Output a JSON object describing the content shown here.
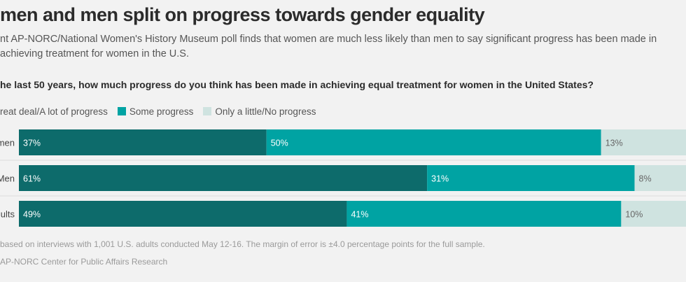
{
  "title": "men and men split on progress towards gender equality",
  "subtitle": "nt AP-NORC/National Women's History Museum poll finds that women are much less likely than men to say significant progress has been made in achieving treatment for women in the U.S.",
  "question": "he last 50 years, how much progress do you think has been made in achieving equal treatment for women in the United States?",
  "legend": [
    {
      "label": "reat deal/A lot of progress",
      "color": "#0d6b6b"
    },
    {
      "label": "Some progress",
      "color": "#00a3a3"
    },
    {
      "label": "Only a little/No progress",
      "color": "#cfe3e0"
    }
  ],
  "note": "based on interviews with 1,001 U.S. adults conducted May 12-16. The margin of error is ±4.0 percentage points for the full sample.",
  "source": "AP-NORC Center for Public Affairs Research",
  "colors": {
    "great_deal": "#0d6b6b",
    "some": "#00a3a3",
    "little": "#cfe3e0",
    "label_dark_text": "#ffffff",
    "label_light_text": "#666666"
  },
  "chart_data": {
    "type": "bar",
    "orientation": "horizontal",
    "stacked": true,
    "categories": [
      "omen",
      "Men",
      "dults"
    ],
    "series": [
      {
        "name": "reat deal/A lot of progress",
        "values": [
          37,
          61,
          49
        ],
        "labels": [
          "37%",
          "61%",
          "49%"
        ]
      },
      {
        "name": "Some progress",
        "values": [
          50,
          31,
          41
        ],
        "labels": [
          "50%",
          "31%",
          "41%"
        ]
      },
      {
        "name": "Only a little/No progress",
        "values": [
          13,
          8,
          10
        ],
        "labels": [
          "13%",
          "8%",
          "10%"
        ]
      }
    ],
    "xlim": [
      0,
      100
    ]
  }
}
